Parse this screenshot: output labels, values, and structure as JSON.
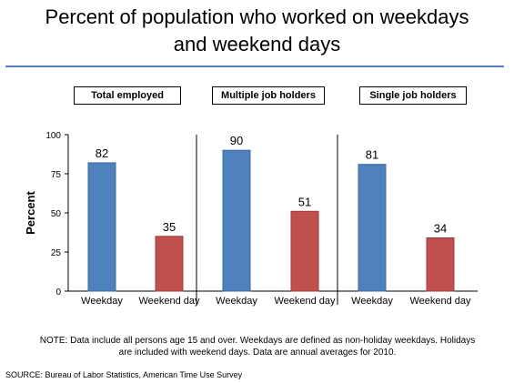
{
  "title_line1": "Percent of population who worked on weekdays",
  "title_line2": "and weekend days",
  "note_line1": "NOTE:  Data include all persons age 15 and over. Weekdays are defined as non-holiday weekdays. Holidays",
  "note_line2": "are included with weekend days. Data are annual averages for 2010.",
  "source": "SOURCE: Bureau of Labor Statistics, American Time Use Survey",
  "colors": {
    "weekday": "#4f81bd",
    "weekend": "#c0504d",
    "rule": "#4f81bd"
  },
  "chart_data": {
    "type": "bar",
    "ylabel": "Percent",
    "ylim": [
      0,
      100
    ],
    "yticks": [
      0,
      25,
      50,
      75,
      100
    ],
    "categories": [
      "Weekday",
      "Weekend day"
    ],
    "panels": [
      {
        "label": "Total employed",
        "values": [
          82,
          35
        ]
      },
      {
        "label": "Multiple job holders",
        "values": [
          90,
          51
        ]
      },
      {
        "label": "Single job holders",
        "values": [
          81,
          34
        ]
      }
    ]
  }
}
